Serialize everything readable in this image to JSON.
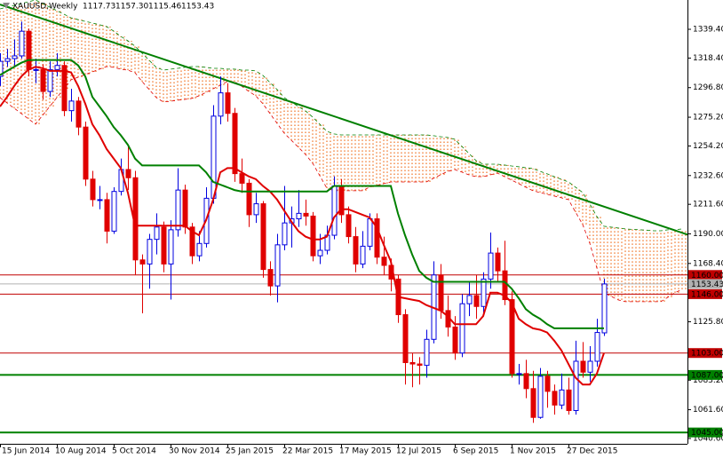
{
  "chart_data": {
    "type": "candlestick",
    "title": "XAUUSD,Weekly",
    "ohlc_labels": [
      "1117.73",
      "1157.30",
      "1115.46",
      "1153.43"
    ],
    "categories": [
      "15 Jun 2014",
      null,
      null,
      null,
      null,
      null,
      null,
      null,
      "10 Aug 2014",
      null,
      null,
      null,
      null,
      null,
      null,
      null,
      "5 Oct 2014",
      null,
      null,
      null,
      null,
      null,
      null,
      null,
      "30 Nov 2014",
      null,
      null,
      null,
      null,
      null,
      null,
      null,
      "25 Jan 2015",
      null,
      null,
      null,
      null,
      null,
      null,
      null,
      "22 Mar 2015",
      null,
      null,
      null,
      null,
      null,
      null,
      null,
      "17 May 2015",
      null,
      null,
      null,
      null,
      null,
      null,
      null,
      "12 Jul 2015",
      null,
      null,
      null,
      null,
      null,
      null,
      null,
      "6 Sep 2015",
      null,
      null,
      null,
      null,
      null,
      null,
      null,
      "1 Nov 2015",
      null,
      null,
      null,
      null,
      null,
      null,
      null,
      "27 Dec 2015",
      null,
      null,
      null,
      null,
      null,
      null,
      null,
      null,
      null,
      null,
      null,
      null,
      null,
      null,
      null,
      null
    ],
    "open": [
      1305,
      1316,
      1318,
      1320,
      1338,
      1310,
      1310,
      1294,
      1310,
      1313,
      1280,
      1287,
      1268,
      1230,
      1215,
      1215,
      1192,
      1221,
      1237,
      1231,
      1171,
      1168,
      1186,
      1195,
      1168,
      1193,
      1222,
      1195,
      1174,
      1183,
      1216,
      1276,
      1293,
      1278,
      1234,
      1227,
      1204,
      1212,
      1164,
      1152,
      1182,
      1198,
      1201,
      1205,
      1203,
      1174,
      1178,
      1189,
      1225,
      1204,
      1188,
      1168,
      1181,
      1201,
      1173,
      1167,
      1157,
      1131,
      1096,
      1095,
      1094,
      1113,
      1160,
      1134,
      1122,
      1103,
      1139,
      1145,
      1137,
      1157,
      1176,
      1163,
      1142,
      1088,
      1088,
      1077,
      1056,
      1086,
      1075,
      1065,
      1076,
      1061,
      1097,
      1089,
      1097,
      1117.73,
      null,
      null,
      null,
      null,
      null,
      null,
      null,
      null,
      null,
      null,
      null
    ],
    "high": [
      1322,
      1325,
      1332,
      1345,
      1340,
      1318,
      1314,
      1316,
      1322,
      1316,
      1296,
      1290,
      1272,
      1236,
      1225,
      1220,
      1224,
      1245,
      1255,
      1236,
      1175,
      1190,
      1205,
      1199,
      1200,
      1238,
      1226,
      1198,
      1192,
      1224,
      1284,
      1305,
      1300,
      1282,
      1245,
      1230,
      1220,
      1214,
      1170,
      1190,
      1225,
      1210,
      1222,
      1215,
      1206,
      1190,
      1196,
      1232,
      1230,
      1210,
      1195,
      1192,
      1205,
      1205,
      1188,
      1172,
      1160,
      1135,
      1103,
      1100,
      1120,
      1170,
      1168,
      1145,
      1130,
      1146,
      1155,
      1160,
      1162,
      1191,
      1180,
      1185,
      1148,
      1095,
      1098,
      1090,
      1092,
      1090,
      1080,
      1088,
      1085,
      1112,
      1111,
      1108,
      1128,
      1157.3,
      null,
      null,
      null,
      null,
      null,
      null,
      null,
      null,
      null,
      null,
      null
    ],
    "low": [
      1298,
      1312,
      1313,
      1318,
      1305,
      1300,
      1288,
      1290,
      1305,
      1276,
      1272,
      1262,
      1225,
      1210,
      1208,
      1183,
      1190,
      1218,
      1222,
      1160,
      1132,
      1150,
      1175,
      1162,
      1142,
      1188,
      1190,
      1168,
      1170,
      1180,
      1212,
      1270,
      1272,
      1228,
      1220,
      1195,
      1198,
      1158,
      1145,
      1140,
      1178,
      1180,
      1195,
      1196,
      1170,
      1168,
      1175,
      1186,
      1198,
      1183,
      1162,
      1165,
      1178,
      1168,
      1160,
      1148,
      1125,
      1080,
      1078,
      1080,
      1085,
      1110,
      1128,
      1115,
      1098,
      1100,
      1130,
      1128,
      1130,
      1150,
      1155,
      1138,
      1085,
      1080,
      1070,
      1052,
      1055,
      1063,
      1058,
      1062,
      1058,
      1058,
      1085,
      1082,
      1093,
      1115.46,
      null,
      null,
      null,
      null,
      null,
      null,
      null,
      null,
      null,
      null,
      null
    ],
    "close": [
      1316,
      1318,
      1320,
      1338,
      1310,
      1310,
      1294,
      1310,
      1313,
      1280,
      1287,
      1268,
      1230,
      1215,
      1215,
      1192,
      1221,
      1237,
      1231,
      1171,
      1168,
      1186,
      1195,
      1168,
      1193,
      1222,
      1195,
      1174,
      1183,
      1216,
      1276,
      1293,
      1278,
      1234,
      1227,
      1204,
      1212,
      1164,
      1152,
      1182,
      1198,
      1201,
      1205,
      1203,
      1174,
      1178,
      1189,
      1225,
      1204,
      1188,
      1168,
      1181,
      1201,
      1173,
      1167,
      1157,
      1131,
      1096,
      1095,
      1094,
      1113,
      1160,
      1134,
      1122,
      1103,
      1139,
      1145,
      1137,
      1157,
      1176,
      1163,
      1142,
      1088,
      1088,
      1077,
      1056,
      1086,
      1075,
      1065,
      1076,
      1061,
      1097,
      1089,
      1097,
      1118,
      1153.43,
      null,
      null,
      null,
      null,
      null,
      null,
      null,
      null,
      null,
      null,
      null
    ],
    "up_color": "#0000e0",
    "down_color": "#e00000",
    "lines": [
      {
        "color": "#e00000",
        "values": [
          1283,
          1290,
          1298,
          1305,
          1310,
          1312,
          1311,
          1309,
          1309,
          1309,
          1308,
          1298,
          1285,
          1270,
          1262,
          1252,
          1245,
          1238,
          1220,
          1196,
          1196,
          1196,
          1196,
          1196,
          1196,
          1196,
          1196,
          1192,
          1189,
          1200,
          1215,
          1235,
          1238,
          1238,
          1235,
          1232,
          1230,
          1225,
          1221,
          1215,
          1207,
          1199,
          1192,
          1188,
          1186,
          1186,
          1188,
          1202,
          1208,
          1208,
          1206,
          1204,
          1202,
          1195,
          1182,
          1170,
          1144,
          1143,
          1142,
          1141,
          1138,
          1136,
          1134,
          1130,
          1124,
          1124,
          1124,
          1124,
          1130,
          1147,
          1147,
          1145,
          1140,
          1128,
          1124,
          1121,
          1120,
          1118,
          1112,
          1105,
          1095,
          1085,
          1080,
          1080,
          1088,
          1103,
          null,
          null,
          null,
          null,
          null,
          null,
          null,
          null,
          null,
          null,
          null
        ]
      },
      {
        "color": "#008000",
        "values": [
          1306,
          1309,
          1312,
          1315,
          1317,
          1317,
          1317,
          1317,
          1317,
          1317,
          1317,
          1313,
          1305,
          1290,
          1283,
          1276,
          1268,
          1262,
          1255,
          1245,
          1240,
          1240,
          1240,
          1240,
          1240,
          1240,
          1240,
          1240,
          1240,
          1235,
          1228,
          1226,
          1224,
          1222,
          1221,
          1221,
          1221,
          1221,
          1221,
          1221,
          1221,
          1221,
          1221,
          1221,
          1221,
          1221,
          1221,
          1225,
          1225,
          1225,
          1225,
          1225,
          1225,
          1225,
          1225,
          1225,
          1205,
          1189,
          1175,
          1163,
          1158,
          1155,
          1155,
          1155,
          1155,
          1155,
          1155,
          1155,
          1155,
          1155,
          1155,
          1155,
          1150,
          1143,
          1135,
          1131,
          1128,
          1124,
          1121,
          1121,
          1121,
          1121,
          1121,
          1121,
          1121,
          1121,
          null,
          null,
          null,
          null,
          null,
          null,
          null,
          null,
          null,
          null,
          null
        ]
      }
    ],
    "cloud": {
      "fill": "#f07020",
      "span_a": {
        "color": "#e00000",
        "values": [
          1289.5,
          1285.6,
          1281.7,
          1277.9,
          1274,
          1270.1,
          1276.6,
          1283,
          1289.5,
          1296,
          1302.5,
          1304.4,
          1306.4,
          1308.3,
          1310.3,
          1312.2,
          1311.6,
          1310.3,
          1309.6,
          1307.7,
          1301.2,
          1295.4,
          1289.5,
          1286.3,
          1286.9,
          1287.6,
          1288.2,
          1288.9,
          1290.8,
          1293.4,
          1296,
          1298.6,
          1301.2,
          1301.2,
          1297.9,
          1294.1,
          1290.8,
          1285,
          1277.9,
          1270.7,
          1263.6,
          1258.4,
          1253.2,
          1248,
          1241.6,
          1232.5,
          1223.4,
          1221.5,
          1221.5,
          1221.5,
          1221.5,
          1221.5,
          1224.1,
          1225.4,
          1226.7,
          1227.9,
          1227.9,
          1227.9,
          1227.9,
          1227.9,
          1227.9,
          1230.6,
          1233.1,
          1235.7,
          1237,
          1235.1,
          1233.1,
          1231.8,
          1231.8,
          1233.1,
          1234.4,
          1231.8,
          1229.3,
          1226.7,
          1224.1,
          1221.5,
          1220.2,
          1218.9,
          1217.6,
          1216.3,
          1215,
          1205.9,
          1196.9,
          1183.2,
          1165.1,
          1147,
          1144.4,
          1141.8,
          1140.5,
          1140.5,
          1140.5,
          1140.5,
          1140.5,
          1140.5,
          1143.7,
          1147,
          1149.6
        ]
      },
      "span_b": {
        "color": "#008000",
        "values": [
          1354.3,
          1355.6,
          1356.9,
          1358.2,
          1359.5,
          1360.8,
          1358.2,
          1355.6,
          1353,
          1350.4,
          1347.8,
          1346.5,
          1345.2,
          1344,
          1342.7,
          1341.4,
          1338.1,
          1334.2,
          1331,
          1327.1,
          1321.9,
          1316.7,
          1311.6,
          1309.6,
          1310.3,
          1310.9,
          1311.6,
          1312.2,
          1312.2,
          1311.6,
          1310.9,
          1310.9,
          1310.3,
          1310.3,
          1309.6,
          1309.6,
          1309,
          1305.7,
          1300.5,
          1295.4,
          1289.5,
          1286.3,
          1283,
          1279.8,
          1275.3,
          1270.1,
          1264.9,
          1263,
          1262.3,
          1262.3,
          1262.3,
          1262.3,
          1262.3,
          1262.3,
          1262.3,
          1262.3,
          1262.3,
          1262.3,
          1262.3,
          1262.3,
          1262.3,
          1261.7,
          1261,
          1260.4,
          1259.1,
          1253.9,
          1248.7,
          1243.5,
          1240.9,
          1240.9,
          1240.9,
          1240.3,
          1239.6,
          1239,
          1238.3,
          1237.7,
          1235.7,
          1233.8,
          1231.8,
          1229.9,
          1227.9,
          1224.1,
          1220.2,
          1211.8,
          1202.7,
          1195.6,
          1194.9,
          1194.3,
          1193.6,
          1193.3,
          1193,
          1192.7,
          1192.3,
          1192.3,
          1193,
          1193,
          1193.6
        ]
      }
    },
    "trendline": {
      "color": "#008000",
      "start": 1357.5,
      "end": 1189.5
    },
    "levels": [
      {
        "value": 1160,
        "label": "1160.00",
        "color": "#c00000",
        "label_color": "#ffffff",
        "width": 1
      },
      {
        "value": 1153.43,
        "label": "1153.43",
        "color": "#b0b0b0",
        "label_color": "#000000",
        "width": 1
      },
      {
        "value": 1146,
        "label": "1146.00",
        "color": "#c00000",
        "label_color": "#ffffff",
        "width": 1
      },
      {
        "value": 1103,
        "label": "1103.00",
        "color": "#c00000",
        "label_color": "#ffffff",
        "width": 1
      },
      {
        "value": 1087,
        "label": "1087.00",
        "color": "#008000",
        "label_color": "#ffffff",
        "width": 2
      },
      {
        "value": 1045,
        "label": "1045.00",
        "color": "#008000",
        "label_color": "#ffffff",
        "width": 2
      }
    ],
    "ylim": [
      1036.7,
      1360.8
    ],
    "yticks": [
      {
        "value": 1339.4,
        "label": "1339.40"
      },
      {
        "value": 1318.4,
        "label": "1318.40"
      },
      {
        "value": 1296.8,
        "label": "1296.80"
      },
      {
        "value": 1275.2,
        "label": "1275.20"
      },
      {
        "value": 1254.2,
        "label": "1254.20"
      },
      {
        "value": 1232.6,
        "label": "1232.60"
      },
      {
        "value": 1211.6,
        "label": "1211.60"
      },
      {
        "value": 1190,
        "label": "1190.00"
      },
      {
        "value": 1168.4,
        "label": "1168.40"
      },
      {
        "value": 1125.8,
        "label": "1125.80"
      },
      {
        "value": 1083.2,
        "label": "1083.20"
      },
      {
        "value": 1061.6,
        "label": "1061.60"
      },
      {
        "value": 1040.6,
        "label": "1040.60"
      }
    ]
  }
}
